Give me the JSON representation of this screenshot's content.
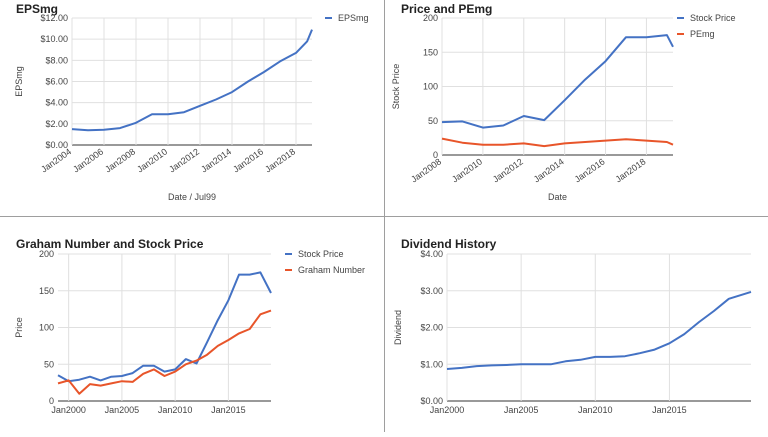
{
  "charts": [
    {
      "type": "line",
      "title": "EPSmg",
      "xlabel": "Date / Jul99",
      "ylabel": "EPSmg",
      "x_ticks": [
        "Jan2004",
        "Jan2006",
        "Jan2008",
        "Jan2010",
        "Jan2012",
        "Jan2014",
        "Jan2016",
        "Jan2018"
      ],
      "xlim": [
        2004,
        2019
      ],
      "y_ticks": [
        "$0.00",
        "$2.00",
        "$4.00",
        "$6.00",
        "$8.00",
        "$10.00",
        "$12.00"
      ],
      "ylim": [
        0,
        12
      ],
      "legend": "top-right",
      "series": [
        {
          "name": "EPSmg",
          "color": "#4472c4",
          "x": [
            2004,
            2005,
            2006,
            2007,
            2008,
            2009,
            2010,
            2011,
            2012,
            2013,
            2014,
            2015,
            2016,
            2017,
            2018,
            2018.7,
            2019
          ],
          "values": [
            1.5,
            1.4,
            1.45,
            1.6,
            2.1,
            2.9,
            2.9,
            3.1,
            3.7,
            4.3,
            5.0,
            6.0,
            6.9,
            7.9,
            8.7,
            9.8,
            10.9
          ]
        }
      ]
    },
    {
      "type": "line",
      "title": "Price and PEmg",
      "xlabel": "Date",
      "ylabel": "Stock Price",
      "x_ticks": [
        "Jan2008",
        "Jan2010",
        "Jan2012",
        "Jan2014",
        "Jan2016",
        "Jan2018"
      ],
      "xlim": [
        2008,
        2019.3
      ],
      "y_ticks": [
        "0",
        "50",
        "100",
        "150",
        "200"
      ],
      "ylim": [
        0,
        200
      ],
      "legend": "top-right",
      "series": [
        {
          "name": "Stock Price",
          "color": "#4472c4",
          "x": [
            2008,
            2009,
            2010,
            2011,
            2012,
            2013,
            2014,
            2015,
            2016,
            2017,
            2018,
            2019,
            2019.3
          ],
          "values": [
            48,
            49,
            40,
            43,
            57,
            51,
            80,
            110,
            137,
            172,
            172,
            175,
            158
          ]
        },
        {
          "name": "PEmg",
          "color": "#e8552a",
          "x": [
            2008,
            2009,
            2010,
            2011,
            2012,
            2013,
            2014,
            2015,
            2016,
            2017,
            2018,
            2019,
            2019.3
          ],
          "values": [
            24,
            18,
            15,
            15,
            17,
            13,
            17,
            19,
            21,
            23,
            21,
            19,
            15
          ]
        }
      ]
    },
    {
      "type": "line",
      "title": "Graham Number and Stock Price",
      "xlabel": "",
      "ylabel": "Price",
      "x_ticks": [
        "Jan2000",
        "Jan2005",
        "Jan2010",
        "Jan2015"
      ],
      "xlim": [
        1999,
        2019
      ],
      "y_ticks": [
        "0",
        "50",
        "100",
        "150",
        "200"
      ],
      "ylim": [
        0,
        200
      ],
      "legend": "top-right",
      "series": [
        {
          "name": "Stock Price",
          "color": "#4472c4",
          "x": [
            1999,
            2000,
            2001,
            2002,
            2003,
            2004,
            2005,
            2006,
            2007,
            2008,
            2009,
            2010,
            2011,
            2012,
            2013,
            2014,
            2015,
            2016,
            2017,
            2018,
            2019
          ],
          "values": [
            35,
            27,
            29,
            33,
            28,
            33,
            34,
            38,
            48,
            48,
            40,
            43,
            57,
            51,
            80,
            110,
            137,
            172,
            172,
            175,
            147
          ]
        },
        {
          "name": "Graham Number",
          "color": "#e8552a",
          "x": [
            1999,
            2000,
            2001,
            2002,
            2003,
            2004,
            2005,
            2006,
            2007,
            2008,
            2009,
            2010,
            2011,
            2012,
            2013,
            2014,
            2015,
            2016,
            2017,
            2018,
            2019
          ],
          "values": [
            24,
            28,
            10,
            23,
            21,
            24,
            27,
            26,
            37,
            43,
            34,
            40,
            50,
            55,
            63,
            75,
            83,
            92,
            98,
            118,
            123
          ]
        }
      ]
    },
    {
      "type": "line",
      "title": "Dividend History",
      "xlabel": "",
      "ylabel": "Dividend",
      "x_ticks": [
        "Jan2000",
        "Jan2005",
        "Jan2010",
        "Jan2015"
      ],
      "xlim": [
        2000,
        2020.5
      ],
      "y_ticks": [
        "$0.00",
        "$1.00",
        "$2.00",
        "$3.00",
        "$4.00"
      ],
      "ylim": [
        0,
        4
      ],
      "legend": "none",
      "series": [
        {
          "name": "",
          "color": "#4472c4",
          "x": [
            2000,
            2001,
            2002,
            2003,
            2004,
            2005,
            2006,
            2007,
            2008,
            2009,
            2010,
            2011,
            2012,
            2013,
            2014,
            2015,
            2016,
            2017,
            2018,
            2019,
            2020.5
          ],
          "values": [
            0.87,
            0.9,
            0.95,
            0.97,
            0.98,
            1.0,
            1.0,
            1.0,
            1.08,
            1.12,
            1.2,
            1.2,
            1.22,
            1.3,
            1.4,
            1.57,
            1.82,
            2.15,
            2.45,
            2.78,
            2.97
          ]
        }
      ]
    }
  ]
}
